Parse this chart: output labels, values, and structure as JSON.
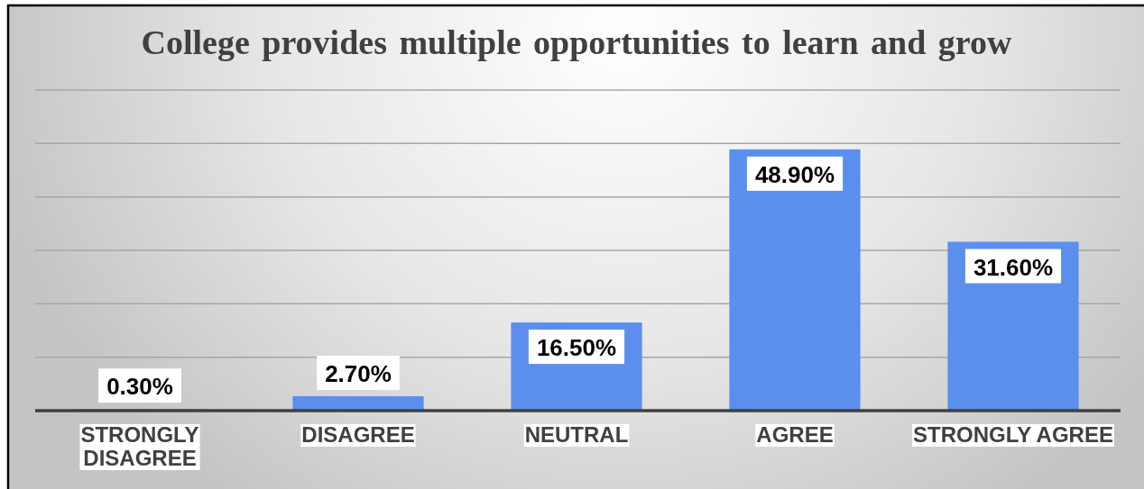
{
  "chart_data": {
    "type": "bar",
    "title": "College provides multiple opportunities to learn and grow",
    "categories": [
      "STRONGLY DISAGREE",
      "DISAGREE",
      "NEUTRAL",
      "AGREE",
      "STRONGLY AGREE"
    ],
    "values": [
      0.3,
      2.7,
      16.5,
      48.9,
      31.6
    ],
    "color": "#5b8fee",
    "value_labels": [
      "0.30%",
      "2.70%",
      "16.50%",
      "48.90%",
      "31.60%"
    ],
    "ylim": [
      0,
      60
    ],
    "yticks": [
      {
        "value": 0,
        "label": null
      },
      {
        "value": 10,
        "label": null
      },
      {
        "value": 20,
        "label": null
      },
      {
        "value": 30,
        "label": null
      },
      {
        "value": 40,
        "label": null
      },
      {
        "value": 50,
        "label": null
      },
      {
        "value": 60,
        "label": null
      }
    ],
    "grid": "y",
    "tick_labels": "x"
  }
}
